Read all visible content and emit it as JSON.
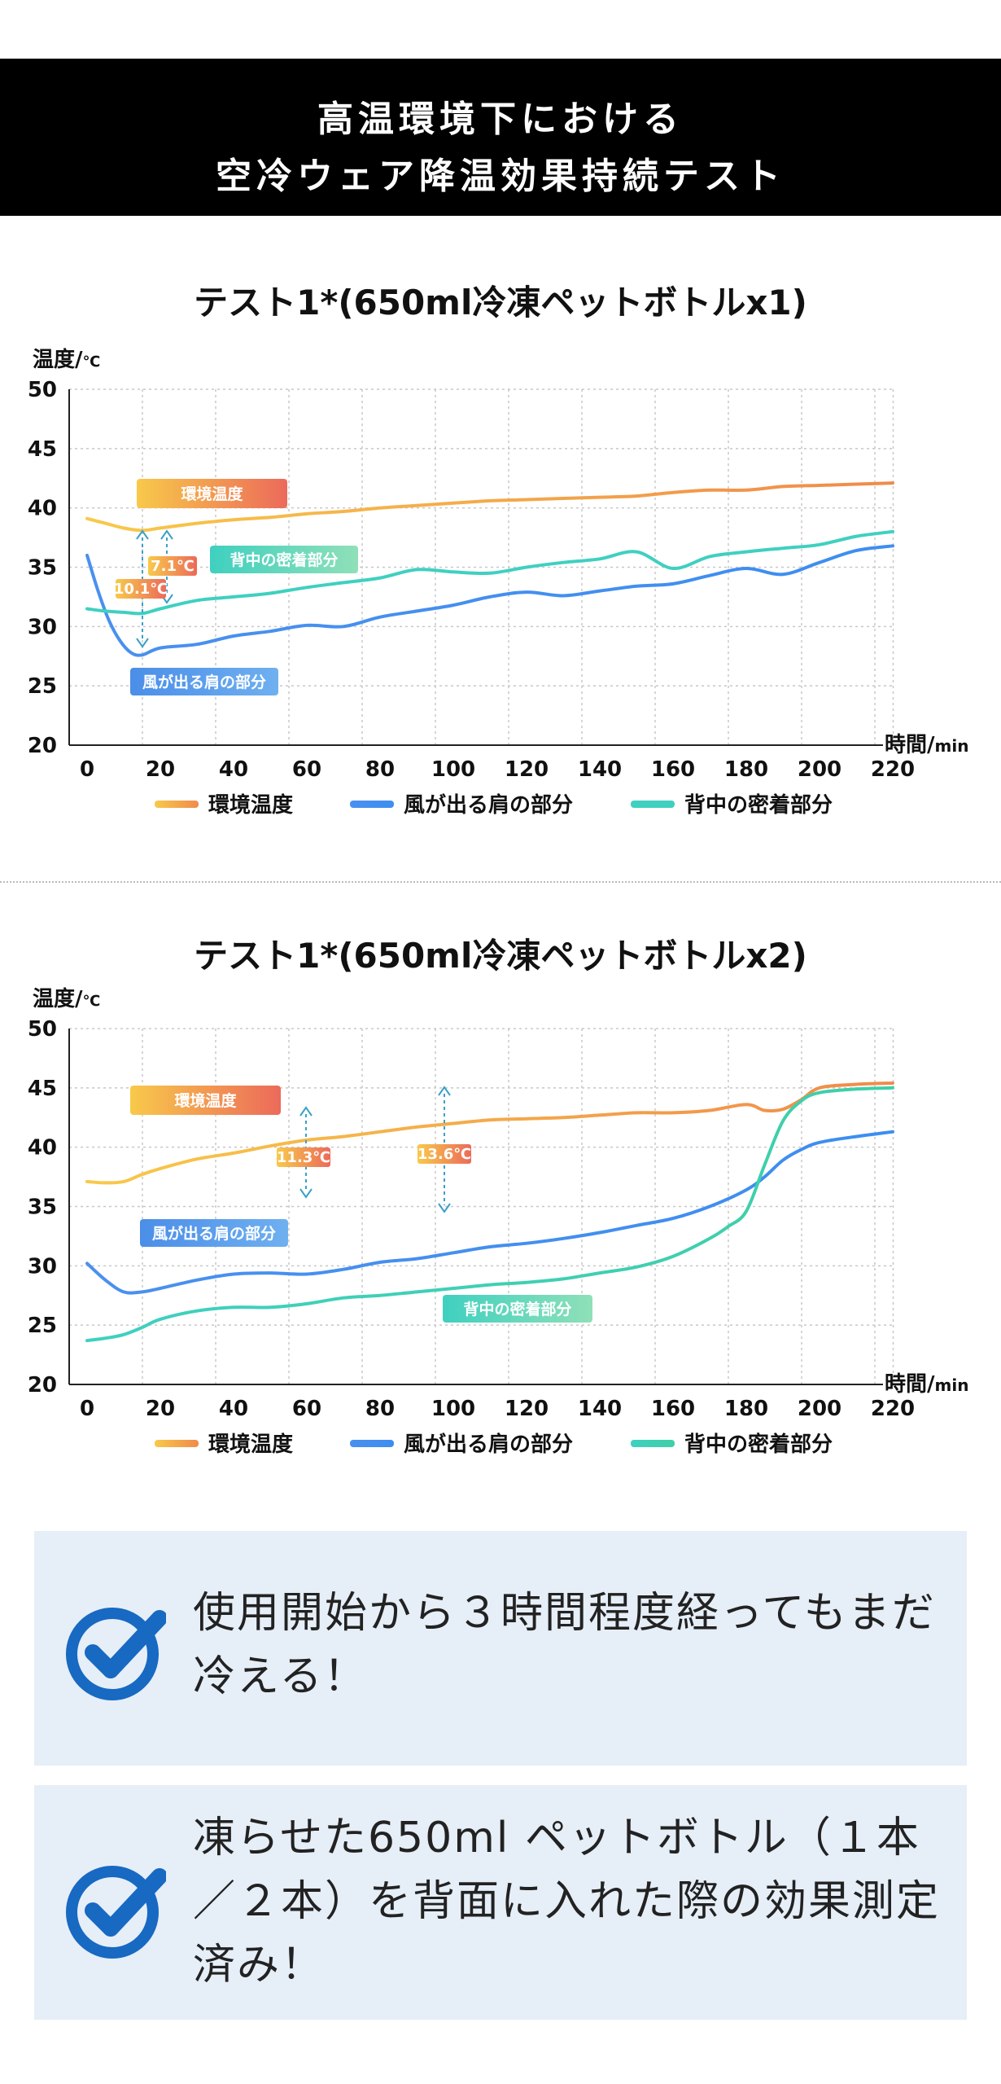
{
  "banner": {
    "line1": "高温環境下における",
    "line2": "空冷ウェア降温効果持続テスト"
  },
  "charts": [
    {
      "title": "テスト1*(650ml冷凍ペットボトルx1)",
      "ylabel_main": "温度/",
      "ylabel_unit": "℃",
      "xlabel_main": "時間/",
      "xlabel_unit": "min",
      "callouts": [
        {
          "text": "環境温度",
          "color_from": "#f8c94a",
          "color_to": "#ec6a5a"
        },
        {
          "text": "背中の密着部分",
          "color_from": "#3fd0c0",
          "color_to": "#8fe0b8"
        },
        {
          "text": "風が出る肩の部分",
          "color_from": "#4b8ee8",
          "color_to": "#6fb0f0"
        }
      ],
      "deltas": [
        {
          "text": "7.1℃"
        },
        {
          "text": "10.1℃"
        }
      ]
    },
    {
      "title": "テスト1*(650ml冷凍ペットボトルx2)",
      "ylabel_main": "温度/",
      "ylabel_unit": "℃",
      "xlabel_main": "時間/",
      "xlabel_unit": "min",
      "callouts": [
        {
          "text": "環境温度",
          "color_from": "#f8c94a",
          "color_to": "#ec6a5a"
        },
        {
          "text": "風が出る肩の部分",
          "color_from": "#4b8ee8",
          "color_to": "#6fb0f0"
        },
        {
          "text": "背中の密着部分",
          "color_from": "#3fd0c0",
          "color_to": "#8fe0b8"
        }
      ],
      "deltas": [
        {
          "text": "11.3℃"
        },
        {
          "text": "13.6℃"
        }
      ]
    }
  ],
  "chart_data": [
    {
      "type": "line",
      "title": "テスト1*(650ml冷凍ペットボトルx1)",
      "xlabel": "時間/min",
      "ylabel": "温度/℃",
      "xlim": [
        0,
        220
      ],
      "ylim": [
        20,
        50
      ],
      "xticks": [
        0,
        20,
        40,
        60,
        80,
        100,
        120,
        140,
        160,
        180,
        200,
        220
      ],
      "yticks": [
        20,
        25,
        30,
        35,
        40,
        45,
        50
      ],
      "grid": true,
      "legend_position": "bottom",
      "series": [
        {
          "name": "環境温度",
          "color": "#f08a4b",
          "x": [
            0,
            5,
            10,
            15,
            20,
            30,
            40,
            50,
            60,
            70,
            80,
            90,
            100,
            110,
            120,
            130,
            140,
            150,
            160,
            170,
            180,
            190,
            200,
            210,
            220
          ],
          "y": [
            39.1,
            38.7,
            38.3,
            38.1,
            38.3,
            38.7,
            39.0,
            39.2,
            39.5,
            39.7,
            40.0,
            40.2,
            40.4,
            40.6,
            40.7,
            40.8,
            40.9,
            41.0,
            41.3,
            41.5,
            41.5,
            41.8,
            41.9,
            42.0,
            42.1
          ]
        },
        {
          "name": "風が出る肩の部分",
          "color": "#3d8ef0",
          "x": [
            0,
            3,
            6,
            9,
            12,
            15,
            20,
            30,
            40,
            50,
            60,
            70,
            80,
            90,
            100,
            110,
            120,
            130,
            140,
            150,
            160,
            170,
            180,
            190,
            200,
            210,
            220
          ],
          "y": [
            36.0,
            33.0,
            30.5,
            28.8,
            27.8,
            27.6,
            28.2,
            28.5,
            29.2,
            29.6,
            30.1,
            30.0,
            30.8,
            31.3,
            31.8,
            32.5,
            32.9,
            32.6,
            33.0,
            33.4,
            33.6,
            34.3,
            34.9,
            34.4,
            35.4,
            36.4,
            36.8
          ]
        },
        {
          "name": "背中の密着部分",
          "color": "#3fd0c0",
          "x": [
            0,
            5,
            10,
            15,
            20,
            30,
            40,
            50,
            60,
            70,
            80,
            90,
            100,
            110,
            120,
            130,
            140,
            150,
            160,
            170,
            180,
            190,
            200,
            210,
            220
          ],
          "y": [
            31.5,
            31.3,
            31.2,
            31.1,
            31.5,
            32.2,
            32.5,
            32.8,
            33.3,
            33.7,
            34.1,
            34.8,
            34.6,
            34.5,
            35.0,
            35.4,
            35.7,
            36.3,
            34.9,
            35.9,
            36.3,
            36.6,
            36.9,
            37.6,
            38.0
          ]
        }
      ]
    },
    {
      "type": "line",
      "title": "テスト1*(650ml冷凍ペットボトルx2)",
      "xlabel": "時間/min",
      "ylabel": "温度/℃",
      "xlim": [
        0,
        220
      ],
      "ylim": [
        20,
        50
      ],
      "xticks": [
        0,
        20,
        40,
        60,
        80,
        100,
        120,
        140,
        160,
        180,
        200,
        220
      ],
      "yticks": [
        20,
        25,
        30,
        35,
        40,
        45,
        50
      ],
      "grid": true,
      "legend_position": "bottom",
      "series": [
        {
          "name": "環境温度",
          "color": "#f08a4b",
          "x": [
            0,
            5,
            10,
            15,
            20,
            30,
            40,
            50,
            60,
            70,
            80,
            90,
            100,
            110,
            120,
            130,
            140,
            150,
            160,
            170,
            180,
            185,
            190,
            195,
            200,
            210,
            220
          ],
          "y": [
            37.1,
            37.0,
            37.1,
            37.7,
            38.2,
            39.0,
            39.5,
            40.1,
            40.6,
            40.9,
            41.3,
            41.7,
            42.0,
            42.3,
            42.4,
            42.5,
            42.7,
            42.9,
            42.9,
            43.1,
            43.6,
            43.1,
            43.2,
            44.0,
            45.0,
            45.3,
            45.4
          ]
        },
        {
          "name": "風が出る肩の部分",
          "color": "#3d8ef0",
          "x": [
            0,
            5,
            10,
            15,
            20,
            30,
            40,
            50,
            60,
            70,
            80,
            90,
            100,
            110,
            120,
            130,
            140,
            150,
            160,
            170,
            180,
            185,
            190,
            195,
            200,
            210,
            220
          ],
          "y": [
            30.2,
            28.8,
            27.8,
            27.8,
            28.1,
            28.8,
            29.3,
            29.4,
            29.3,
            29.7,
            30.3,
            30.6,
            31.1,
            31.6,
            31.9,
            32.3,
            32.8,
            33.4,
            34.0,
            35.0,
            36.4,
            37.5,
            38.9,
            39.8,
            40.4,
            40.9,
            41.3
          ]
        },
        {
          "name": "背中の密着部分",
          "color": "#3fcfa8",
          "x": [
            0,
            5,
            10,
            15,
            20,
            30,
            40,
            50,
            60,
            70,
            80,
            90,
            100,
            110,
            120,
            130,
            140,
            150,
            160,
            170,
            175,
            180,
            185,
            190,
            195,
            200,
            210,
            220
          ],
          "y": [
            23.7,
            23.9,
            24.2,
            24.8,
            25.5,
            26.2,
            26.5,
            26.5,
            26.8,
            27.3,
            27.5,
            27.8,
            28.1,
            28.4,
            28.6,
            28.9,
            29.4,
            29.9,
            30.8,
            32.3,
            33.3,
            34.6,
            38.5,
            42.2,
            43.9,
            44.6,
            44.9,
            45.0
          ]
        }
      ]
    }
  ],
  "cards": [
    {
      "text": "使用開始から３時間程度経ってもまだ冷える！"
    },
    {
      "text": "凍らせた650ml ペットボトル（１本／２本）を背面に入れた際の効果測定済み！"
    }
  ],
  "icon_color": "#1769c2"
}
